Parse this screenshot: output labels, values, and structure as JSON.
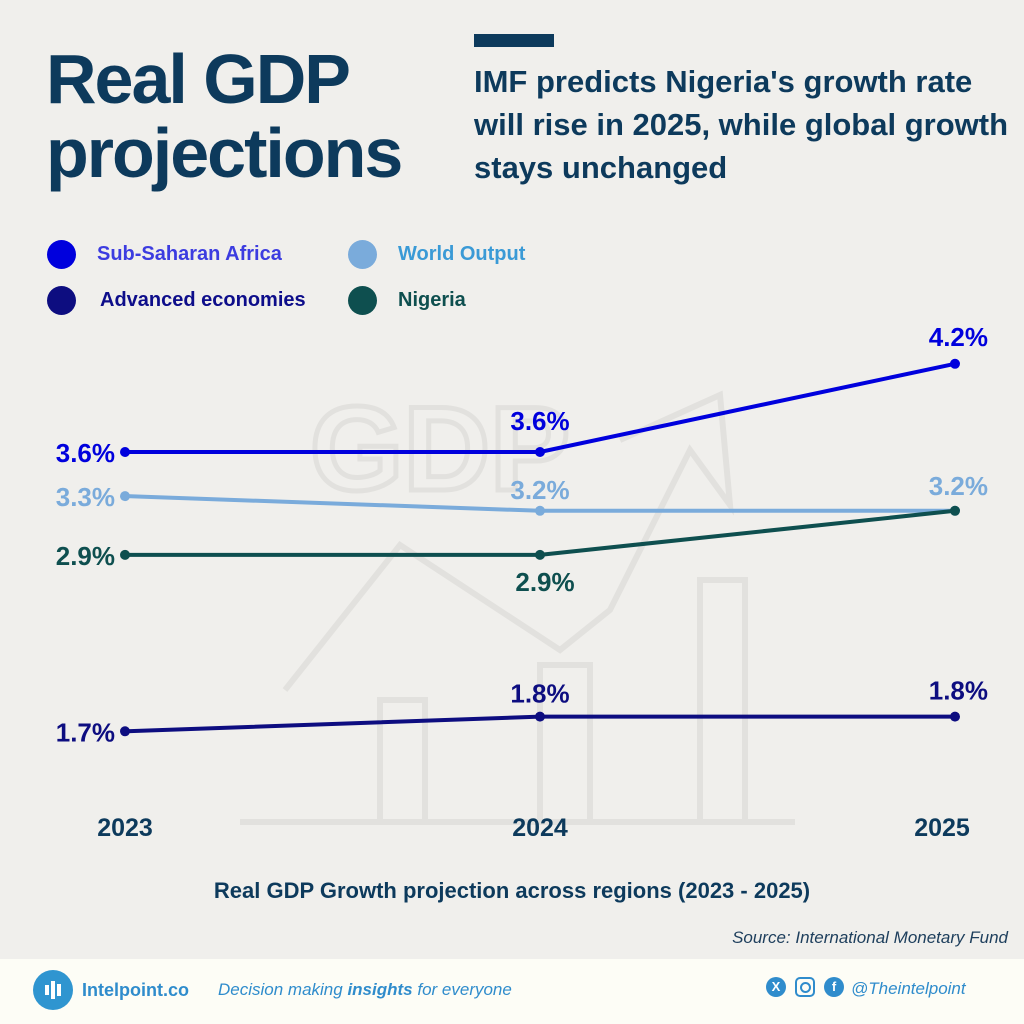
{
  "header": {
    "title_line1": "Real GDP",
    "title_line2": "projections",
    "subtitle": "IMF predicts Nigeria's growth rate will rise in 2025, while global growth stays unchanged"
  },
  "chart_data": {
    "type": "line",
    "categories": [
      "2023",
      "2024",
      "2025"
    ],
    "series": [
      {
        "name": "Sub-Saharan Africa",
        "values": [
          3.6,
          3.6,
          4.2
        ],
        "labels": [
          "3.6%",
          "3.6%",
          "4.2%"
        ],
        "color": "#0000dd",
        "legend_color": "#3c3ce0"
      },
      {
        "name": "World Output",
        "values": [
          3.3,
          3.2,
          3.2
        ],
        "labels": [
          "3.3%",
          "3.2%",
          "3.2%"
        ],
        "color": "#7aabdb",
        "legend_color": "#3a9ad6"
      },
      {
        "name": "Advanced economies",
        "values": [
          1.7,
          1.8,
          1.8
        ],
        "labels": [
          "1.7%",
          "1.8%",
          "1.8%"
        ],
        "color": "#0d0d80",
        "legend_color": "#0d0d8a"
      },
      {
        "name": "Nigeria",
        "values": [
          2.9,
          2.9,
          3.2
        ],
        "labels": [
          "2.9%",
          "2.9%",
          "3.2%"
        ],
        "color": "#0e4f4f",
        "legend_color": "#0e4f4f"
      }
    ],
    "xlabel": "Real GDP Growth projection across regions (2023 - 2025)",
    "grid": false,
    "legend_placement": "top-left"
  },
  "source": "Source: International Monetary Fund",
  "footer": {
    "brand": "Intelpoint.co",
    "tagline_pre": "Decision making ",
    "tagline_bold": "insights",
    "tagline_post": " for everyone",
    "handle": "@Theintelpoint",
    "icons": [
      "x-icon",
      "instagram-icon",
      "facebook-icon"
    ]
  }
}
